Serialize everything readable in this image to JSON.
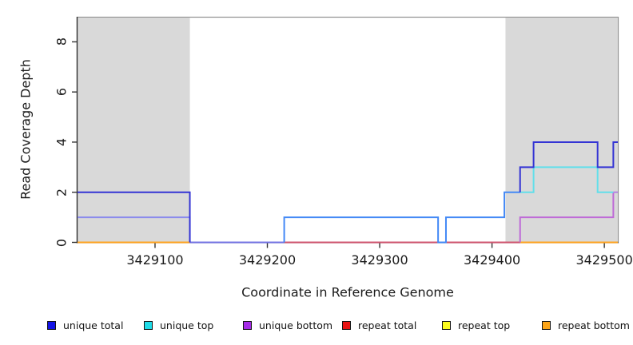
{
  "figure": {
    "y_axis": {
      "title": "Read Coverage Depth",
      "ticks": [
        0,
        2,
        4,
        6,
        8
      ]
    },
    "x_axis": {
      "title": "Coordinate in Reference Genome",
      "ticks": [
        3429100,
        3429200,
        3429300,
        3429400,
        3429500
      ]
    },
    "legend": [
      {
        "label": "unique total",
        "color": "#1414E6"
      },
      {
        "label": "unique top",
        "color": "#1FDCE8"
      },
      {
        "label": "unique bottom",
        "color": "#A62BE8"
      },
      {
        "label": "repeat total",
        "color": "#E81414"
      },
      {
        "label": "repeat top",
        "color": "#FCFC1F"
      },
      {
        "label": "repeat bottom",
        "color": "#FCA519"
      }
    ],
    "colors": {
      "repeat_region_shading": "#D9D9D9",
      "plot_border": "#909090",
      "axis_line": "#333333"
    }
  },
  "chart_data": {
    "type": "line",
    "subtype": "step-coverage",
    "title": "",
    "xlabel": "Coordinate in Reference Genome",
    "ylabel": "Read Coverage Depth",
    "xlim": [
      3429031,
      3429512
    ],
    "ylim": [
      0,
      9
    ],
    "grid": false,
    "legend_position": "bottom",
    "shaded_repeat_regions": [
      [
        3429031,
        3429131
      ],
      [
        3429412,
        3429512
      ]
    ],
    "series": [
      {
        "name": "unique total",
        "color": "#0000FF",
        "steps": [
          [
            3429031,
            2
          ],
          [
            3429131,
            0
          ],
          [
            3429215,
            1
          ],
          [
            3429352,
            0
          ],
          [
            3429359,
            1
          ],
          [
            3429411,
            2
          ],
          [
            3429425,
            3
          ],
          [
            3429437,
            4
          ],
          [
            3429494,
            3
          ],
          [
            3429508,
            4
          ],
          [
            3429512,
            4
          ]
        ]
      },
      {
        "name": "unique top",
        "color": "#00FFFF",
        "steps": [
          [
            3429031,
            1
          ],
          [
            3429131,
            0
          ],
          [
            3429215,
            1
          ],
          [
            3429352,
            0
          ],
          [
            3429359,
            1
          ],
          [
            3429411,
            2
          ],
          [
            3429437,
            3
          ],
          [
            3429494,
            2
          ],
          [
            3429512,
            2
          ]
        ]
      },
      {
        "name": "unique bottom",
        "color": "#A020F0",
        "steps": [
          [
            3429031,
            1
          ],
          [
            3429131,
            0
          ],
          [
            3429425,
            1
          ],
          [
            3429508,
            2
          ],
          [
            3429512,
            2
          ]
        ]
      },
      {
        "name": "repeat total",
        "color": "#FF0000",
        "steps": [
          [
            3429031,
            0
          ],
          [
            3429512,
            0
          ]
        ]
      },
      {
        "name": "repeat top",
        "color": "#FFFF00",
        "steps": [
          [
            3429031,
            0
          ],
          [
            3429512,
            0
          ]
        ]
      },
      {
        "name": "repeat bottom",
        "color": "#FFA500",
        "steps": [
          [
            3429031,
            0
          ],
          [
            3429512,
            0
          ]
        ]
      }
    ],
    "visible_lines": [
      {
        "name": "orange-baseline-left",
        "color": "#FFA421",
        "pts": [
          [
            3429031,
            0
          ],
          [
            3429131,
            0
          ]
        ]
      },
      {
        "name": "lavender-baseline",
        "color": "#7474E4",
        "pts": [
          [
            3429131,
            0
          ],
          [
            3429215,
            0
          ]
        ]
      },
      {
        "name": "rose-baseline",
        "color": "#D05670",
        "pts": [
          [
            3429215,
            0
          ],
          [
            3429425,
            0
          ]
        ]
      },
      {
        "name": "orange-baseline-right",
        "color": "#FFA421",
        "pts": [
          [
            3429425,
            0
          ],
          [
            3429512,
            0
          ]
        ]
      },
      {
        "name": "periwinkle-left",
        "color": "#8A8AEC",
        "pts": [
          [
            3429031,
            1
          ],
          [
            3429131,
            1
          ],
          [
            3429131,
            0
          ]
        ]
      },
      {
        "name": "navy-left",
        "color": "#3434D4",
        "pts": [
          [
            3429031,
            2
          ],
          [
            3429131,
            2
          ],
          [
            3429131,
            0
          ]
        ]
      },
      {
        "name": "azure-mid",
        "color": "#4489F6",
        "pts": [
          [
            3429215,
            0
          ],
          [
            3429215,
            1
          ],
          [
            3429352,
            1
          ],
          [
            3429352,
            0
          ],
          [
            3429359,
            0
          ],
          [
            3429359,
            1
          ],
          [
            3429411,
            1
          ],
          [
            3429411,
            2
          ],
          [
            3429425,
            2
          ]
        ]
      },
      {
        "name": "purple-right",
        "color": "#BE6AD7",
        "pts": [
          [
            3429425,
            0
          ],
          [
            3429425,
            1
          ],
          [
            3429508,
            1
          ],
          [
            3429508,
            2
          ]
        ]
      },
      {
        "name": "violet-right",
        "color": "#B583E3",
        "pts": [
          [
            3429508,
            2
          ],
          [
            3429512,
            2
          ]
        ]
      },
      {
        "name": "cyan-right",
        "color": "#62DFEA",
        "pts": [
          [
            3429425,
            2
          ],
          [
            3429437,
            2
          ],
          [
            3429437,
            3
          ],
          [
            3429494,
            3
          ],
          [
            3429494,
            2
          ],
          [
            3429508,
            2
          ]
        ]
      },
      {
        "name": "navy-right",
        "color": "#3434D4",
        "pts": [
          [
            3429425,
            2
          ],
          [
            3429425,
            3
          ],
          [
            3429437,
            3
          ],
          [
            3429437,
            4
          ],
          [
            3429494,
            4
          ],
          [
            3429494,
            3
          ],
          [
            3429508,
            3
          ],
          [
            3429508,
            4
          ],
          [
            3429512,
            4
          ]
        ]
      }
    ]
  }
}
